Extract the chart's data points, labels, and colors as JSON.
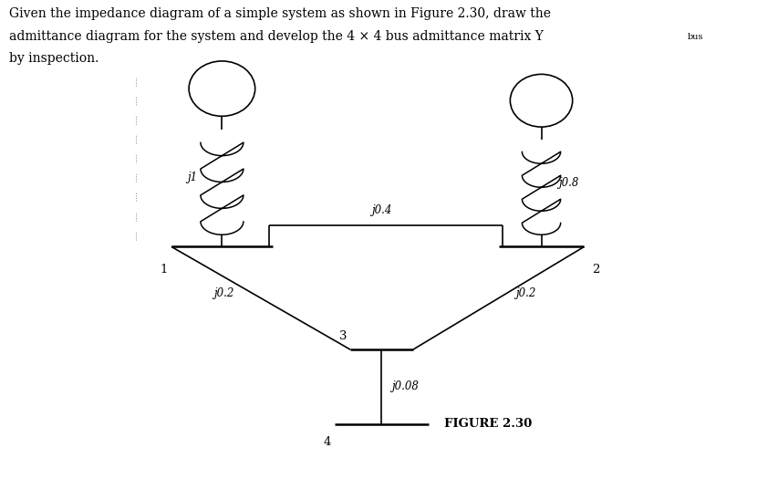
{
  "figure_label": "FIGURE 2.30",
  "background_color": "#ffffff",
  "text_color": "#000000",
  "line_color": "#000000",
  "label_j1": "j1",
  "label_j08": "j0.8",
  "label_j04": "j0.4",
  "label_j02_left": "j0.2",
  "label_j02_right": "j0.2",
  "label_j008": "j0.08",
  "label_bus1": "1",
  "label_bus2": "2",
  "label_bus3": "3",
  "label_bus4": "4",
  "header_line1": "Given the impedance diagram of a simple system as shown in Figure 2.30, draw the",
  "header_line2": "admittance diagram for the system and develop the 4 × 4 bus admittance matrix Y",
  "header_sub": "bus",
  "header_line3": "by inspection."
}
